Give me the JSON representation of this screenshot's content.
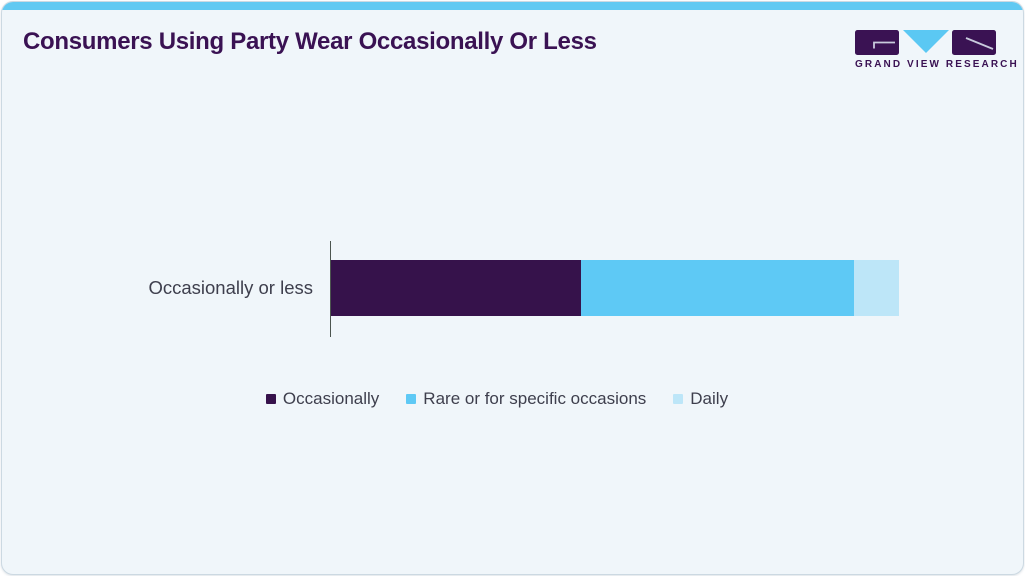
{
  "page": {
    "brand": {
      "name": "GRAND VIEW RESEARCH"
    },
    "colors": {
      "accent_bar": "#61c9f2",
      "card_background": "#f0f6fa",
      "card_border": "#ccd9e2",
      "title_text": "#3a1253",
      "body_text": "#3e3f4d",
      "axis_line": "#4c554f",
      "logo_block": "#3a1253",
      "logo_triangle": "#5bc8f3"
    }
  },
  "chart_data": {
    "type": "bar",
    "orientation": "horizontal",
    "stacked": true,
    "title": "Consumers Using Party Wear Occasionally Or Less",
    "categories": [
      "Occasionally or less"
    ],
    "series": [
      {
        "name": "Occasionally",
        "values": [
          44
        ],
        "color": "#36124b"
      },
      {
        "name": "Rare or for specific occasions",
        "values": [
          48
        ],
        "color": "#5ec9f5"
      },
      {
        "name": "Daily",
        "values": [
          8
        ],
        "color": "#bde6f8"
      }
    ],
    "xlim": [
      0,
      100
    ],
    "ylabel": "",
    "xlabel": "",
    "grid": false,
    "legend_position": "bottom",
    "data_labels": false
  }
}
